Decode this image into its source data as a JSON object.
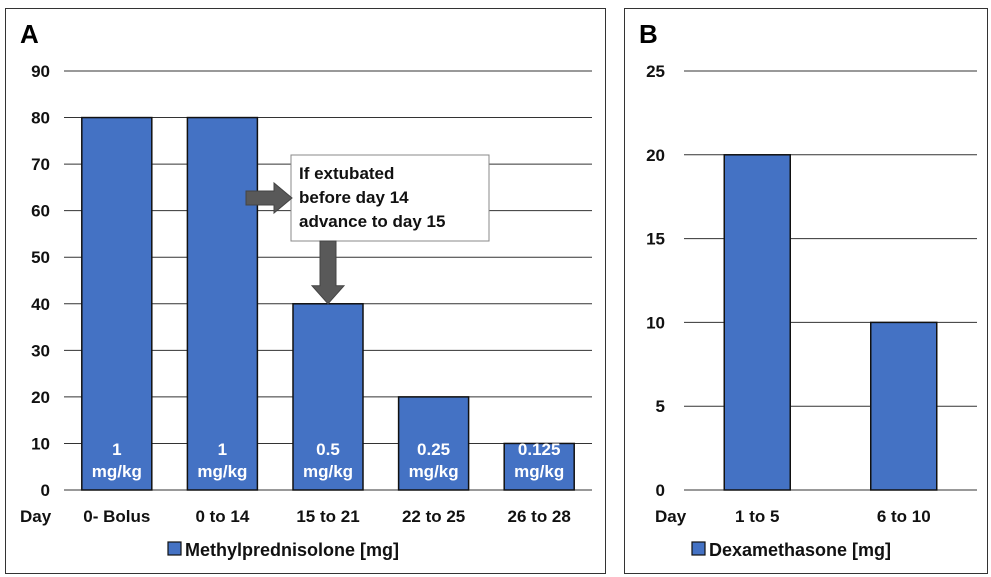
{
  "chart_data": [
    {
      "panel_label": "A",
      "type": "bar",
      "x_axis_prefix": "Day",
      "categories": [
        "0- Bolus",
        "0 to 14",
        "15 to 21",
        "22 to 25",
        "26 to 28"
      ],
      "series": [
        {
          "name": "Methylprednisolone [mg]",
          "values": [
            80,
            80,
            40,
            20,
            10
          ],
          "labels": [
            [
              "1",
              "mg/kg"
            ],
            [
              "1",
              "mg/kg"
            ],
            [
              "0.5",
              "mg/kg"
            ],
            [
              "0.25",
              "mg/kg"
            ],
            [
              "0.125",
              "mg/kg"
            ]
          ],
          "color": "#4472C4"
        }
      ],
      "yticks": [
        0,
        10,
        20,
        30,
        40,
        50,
        60,
        70,
        80,
        90
      ],
      "ylim": [
        0,
        90
      ],
      "grid": true,
      "legend": "bottom",
      "annotation": {
        "lines": [
          "If extubated",
          "before day 14",
          "advance to day 15"
        ]
      }
    },
    {
      "panel_label": "B",
      "type": "bar",
      "x_axis_prefix": "Day",
      "categories": [
        "1 to 5",
        "6 to 10"
      ],
      "series": [
        {
          "name": "Dexamethasone [mg]",
          "values": [
            20,
            10
          ],
          "color": "#4472C4"
        }
      ],
      "yticks": [
        0,
        5,
        10,
        15,
        20,
        25
      ],
      "ylim": [
        0,
        25
      ],
      "grid": true,
      "legend": "bottom"
    }
  ],
  "colors": {
    "bar": "#4472C4",
    "bar_edge": "#111111",
    "grid": "#333333",
    "arrow": "#595959"
  }
}
